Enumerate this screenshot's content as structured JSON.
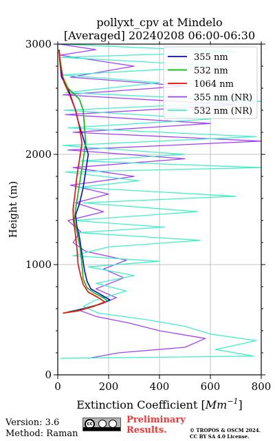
{
  "chart_data": {
    "type": "line",
    "title_line1": "pollyxt_cpv at Mindelo",
    "title_line2": "[Averaged] 20240208 06:00-06:30",
    "xlabel_main": "Extinction Coefficient [",
    "xlabel_unit": "Mm",
    "xlabel_exp": "−1",
    "xlabel_close": "]",
    "ylabel": "Height (m)",
    "xlim": [
      0,
      800
    ],
    "ylim": [
      0,
      3000
    ],
    "xticks": [
      "0",
      "200",
      "400",
      "600",
      "800"
    ],
    "yticks": [
      "0",
      "1000",
      "2000",
      "3000"
    ],
    "grid": true,
    "legend_position": "top-right",
    "series": [
      {
        "name": "355 nm",
        "color": "#0000ff",
        "points": [
          [
            40,
            570
          ],
          [
            100,
            600
          ],
          [
            165,
            640
          ],
          [
            205,
            680
          ],
          [
            190,
            700
          ],
          [
            160,
            740
          ],
          [
            130,
            780
          ],
          [
            115,
            850
          ],
          [
            105,
            950
          ],
          [
            95,
            1100
          ],
          [
            85,
            1250
          ],
          [
            75,
            1350
          ],
          [
            70,
            1450
          ],
          [
            85,
            1550
          ],
          [
            100,
            1700
          ],
          [
            110,
            1850
          ],
          [
            120,
            2000
          ],
          [
            100,
            2150
          ],
          [
            80,
            2300
          ],
          [
            70,
            2400
          ],
          [
            55,
            2500
          ],
          [
            40,
            2600
          ],
          [
            15,
            2700
          ],
          [
            10,
            2800
          ],
          [
            5,
            2950
          ]
        ]
      },
      {
        "name": "532 nm",
        "color": "#00bb00",
        "points": [
          [
            30,
            565
          ],
          [
            90,
            590
          ],
          [
            150,
            630
          ],
          [
            195,
            670
          ],
          [
            180,
            700
          ],
          [
            145,
            740
          ],
          [
            115,
            790
          ],
          [
            100,
            870
          ],
          [
            95,
            1000
          ],
          [
            88,
            1150
          ],
          [
            75,
            1300
          ],
          [
            65,
            1400
          ],
          [
            70,
            1500
          ],
          [
            80,
            1650
          ],
          [
            90,
            1800
          ],
          [
            100,
            1950
          ],
          [
            110,
            2100
          ],
          [
            105,
            2250
          ],
          [
            100,
            2400
          ],
          [
            85,
            2500
          ],
          [
            40,
            2600
          ],
          [
            20,
            2700
          ],
          [
            10,
            2850
          ],
          [
            5,
            2950
          ]
        ]
      },
      {
        "name": "1064 nm",
        "color": "#ff0000",
        "points": [
          [
            20,
            560
          ],
          [
            80,
            580
          ],
          [
            140,
            620
          ],
          [
            185,
            660
          ],
          [
            160,
            700
          ],
          [
            120,
            750
          ],
          [
            100,
            820
          ],
          [
            90,
            900
          ],
          [
            80,
            1000
          ],
          [
            75,
            1150
          ],
          [
            68,
            1300
          ],
          [
            62,
            1400
          ],
          [
            60,
            1500
          ],
          [
            68,
            1650
          ],
          [
            75,
            1800
          ],
          [
            85,
            1950
          ],
          [
            95,
            2100
          ],
          [
            85,
            2250
          ],
          [
            70,
            2400
          ],
          [
            45,
            2550
          ],
          [
            25,
            2650
          ],
          [
            10,
            2800
          ],
          [
            5,
            2950
          ]
        ]
      },
      {
        "name": "355 nm (NR)",
        "color": "#a040ff",
        "points": [
          [
            120,
            150
          ],
          [
            240,
            200
          ],
          [
            500,
            250
          ],
          [
            580,
            330
          ],
          [
            400,
            400
          ],
          [
            280,
            470
          ],
          [
            150,
            530
          ],
          [
            80,
            590
          ],
          [
            180,
            650
          ],
          [
            230,
            700
          ],
          [
            150,
            780
          ],
          [
            260,
            880
          ],
          [
            180,
            960
          ],
          [
            270,
            1040
          ],
          [
            110,
            1120
          ],
          [
            60,
            1200
          ],
          [
            90,
            1300
          ],
          [
            40,
            1400
          ],
          [
            180,
            1480
          ],
          [
            70,
            1560
          ],
          [
            200,
            1640
          ],
          [
            50,
            1720
          ],
          [
            300,
            1800
          ],
          [
            60,
            1880
          ],
          [
            500,
            1960
          ],
          [
            40,
            2040
          ],
          [
            800,
            2120
          ],
          [
            60,
            2200
          ],
          [
            600,
            2280
          ],
          [
            30,
            2360
          ],
          [
            700,
            2450
          ],
          [
            20,
            2540
          ],
          [
            500,
            2620
          ],
          [
            50,
            2700
          ],
          [
            300,
            2800
          ],
          [
            10,
            2900
          ],
          [
            150,
            2950
          ],
          [
            5,
            3000
          ]
        ]
      },
      {
        "name": "532 nm (NR)",
        "color": "#40f0c8",
        "points": [
          [
            10,
            150
          ],
          [
            770,
            170
          ],
          [
            620,
            230
          ],
          [
            780,
            310
          ],
          [
            600,
            370
          ],
          [
            500,
            440
          ],
          [
            350,
            500
          ],
          [
            160,
            560
          ],
          [
            100,
            620
          ],
          [
            150,
            680
          ],
          [
            270,
            760
          ],
          [
            150,
            830
          ],
          [
            300,
            900
          ],
          [
            120,
            980
          ],
          [
            400,
            1030
          ],
          [
            60,
            1080
          ],
          [
            200,
            1160
          ],
          [
            560,
            1220
          ],
          [
            80,
            1290
          ],
          [
            420,
            1340
          ],
          [
            60,
            1400
          ],
          [
            550,
            1480
          ],
          [
            100,
            1560
          ],
          [
            700,
            1620
          ],
          [
            80,
            1700
          ],
          [
            320,
            1760
          ],
          [
            30,
            1840
          ],
          [
            800,
            1880
          ],
          [
            90,
            1940
          ],
          [
            500,
            2000
          ],
          [
            20,
            2080
          ],
          [
            780,
            2160
          ],
          [
            40,
            2240
          ],
          [
            600,
            2320
          ],
          [
            25,
            2400
          ],
          [
            800,
            2480
          ],
          [
            30,
            2560
          ],
          [
            400,
            2650
          ],
          [
            20,
            2720
          ],
          [
            650,
            2800
          ],
          [
            15,
            2880
          ],
          [
            700,
            2930
          ],
          [
            5,
            3000
          ]
        ]
      }
    ]
  },
  "footer": {
    "version": "Version: 3.6",
    "method": "Method: Raman",
    "preliminary_1": "Preliminary",
    "preliminary_2": "Results.",
    "copyright_1": "© TROPOS & OSCM 2024.",
    "copyright_2": "CC BY SA 4.0 License."
  }
}
